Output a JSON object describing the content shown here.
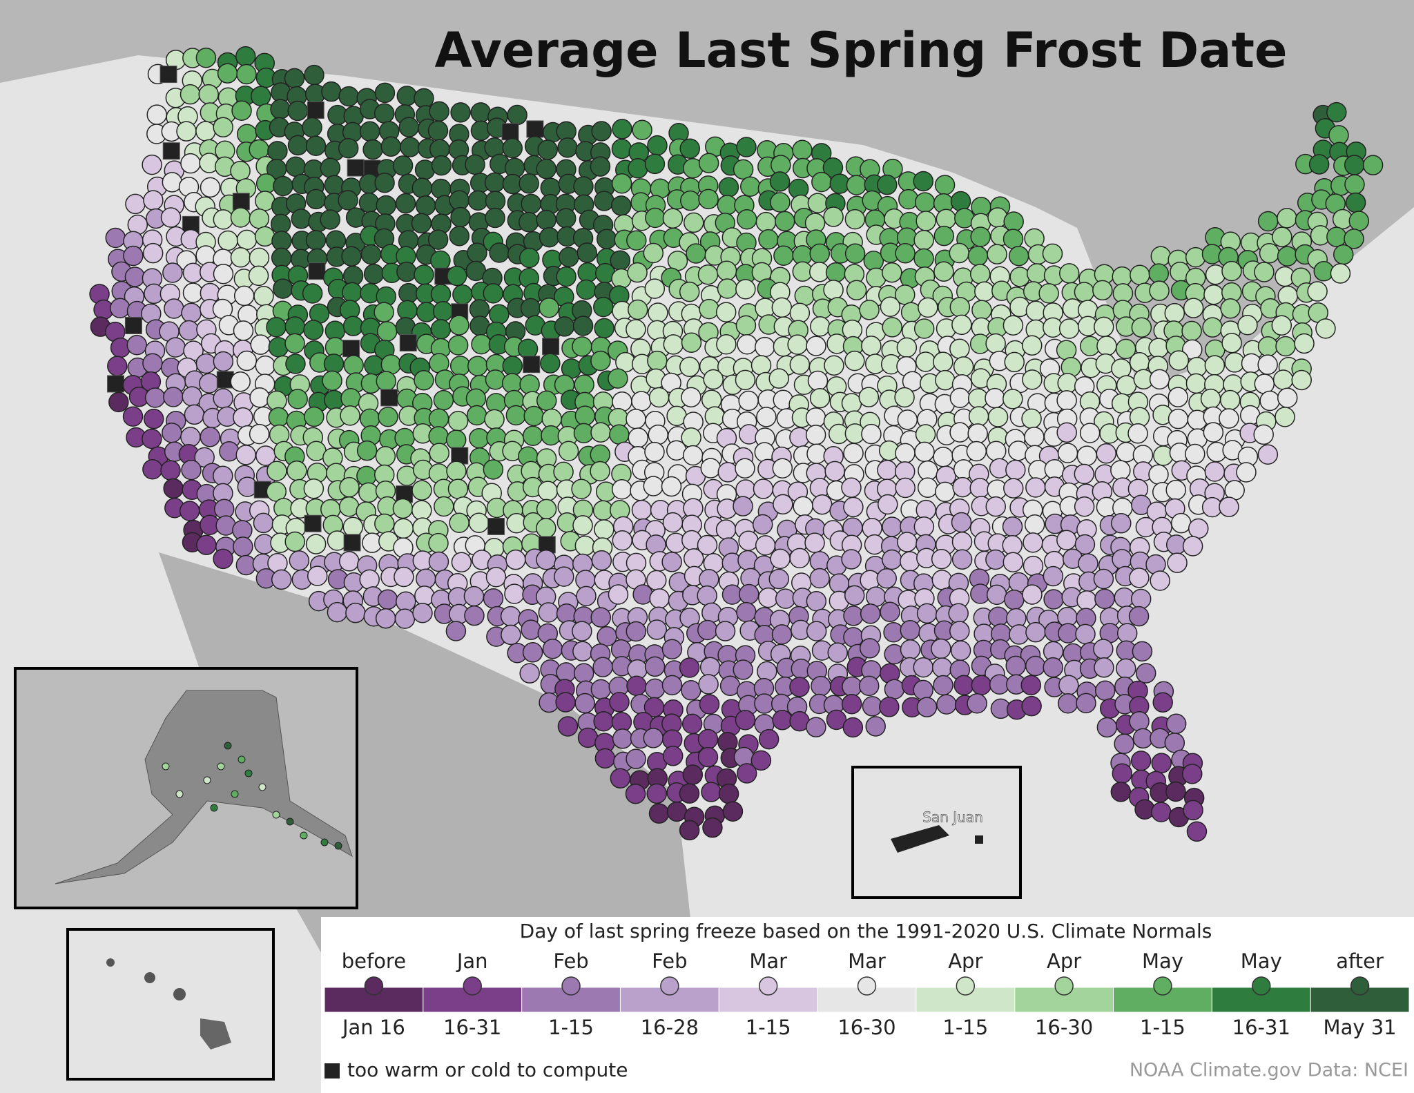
{
  "title": "Average Last Spring Frost Date",
  "legend": {
    "caption": "Day of last spring freeze based on the 1991-2020 U.S. Climate Normals",
    "items": [
      {
        "top": "before",
        "bottom": "Jan 16",
        "color": "#5b2a5f"
      },
      {
        "top": "Jan",
        "bottom": "16-31",
        "color": "#7b3f8a"
      },
      {
        "top": "Feb",
        "bottom": "1-15",
        "color": "#9d79b1"
      },
      {
        "top": "Feb",
        "bottom": "16-28",
        "color": "#b9a1cb"
      },
      {
        "top": "Mar",
        "bottom": "1-15",
        "color": "#d8c6e0"
      },
      {
        "top": "Mar",
        "bottom": "16-30",
        "color": "#e6e6e6"
      },
      {
        "top": "Apr",
        "bottom": "1-15",
        "color": "#cfe7c8"
      },
      {
        "top": "Apr",
        "bottom": "16-30",
        "color": "#a3d49b"
      },
      {
        "top": "May",
        "bottom": "1-15",
        "color": "#5fae62"
      },
      {
        "top": "May",
        "bottom": "16-31",
        "color": "#2f7d3e"
      },
      {
        "top": "after",
        "bottom": "May 31",
        "color": "#2f5e3a"
      }
    ]
  },
  "note": "too warm or cold to compute",
  "credit": "NOAA Climate.gov  Data: NCEI",
  "insets": {
    "puerto_rico_label": "San Juan"
  }
}
